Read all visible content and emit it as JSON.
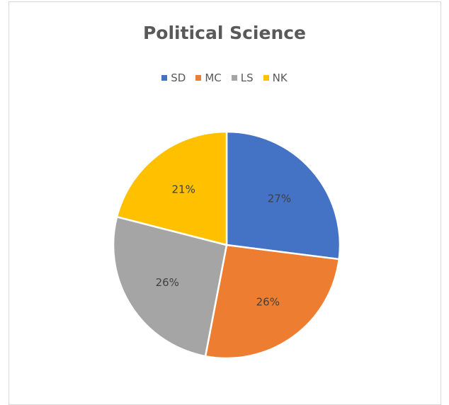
{
  "chart_data": {
    "type": "pie",
    "title": "Political Science",
    "legend_position": "top",
    "categories": [
      "SD",
      "MC",
      "LS",
      "NK"
    ],
    "values": [
      27,
      26,
      26,
      21
    ],
    "labels": [
      "27%",
      "26%",
      "26%",
      "21%"
    ],
    "colors": [
      "#4472C4",
      "#ED7D31",
      "#A5A5A5",
      "#FFC000"
    ]
  }
}
